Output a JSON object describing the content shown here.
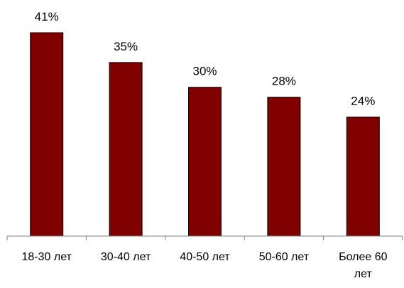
{
  "chart_data": {
    "type": "bar",
    "categories": [
      "18-30 лет",
      "30-40 лет",
      "40-50 лет",
      "50-60 лет",
      "Более 60 лет"
    ],
    "category_lines": [
      [
        "18-30 лет"
      ],
      [
        "30-40 лет"
      ],
      [
        "40-50 лет"
      ],
      [
        "50-60 лет"
      ],
      [
        "Более 60",
        "лет"
      ]
    ],
    "values": [
      41,
      35,
      30,
      28,
      24
    ],
    "value_labels": [
      "41%",
      "35%",
      "30%",
      "28%",
      "24%"
    ],
    "unit": "%",
    "title": "",
    "xlabel": "",
    "ylabel": "",
    "ylim": [
      0,
      41
    ],
    "grid": false,
    "legend": "none",
    "bar_color": "#800000"
  }
}
